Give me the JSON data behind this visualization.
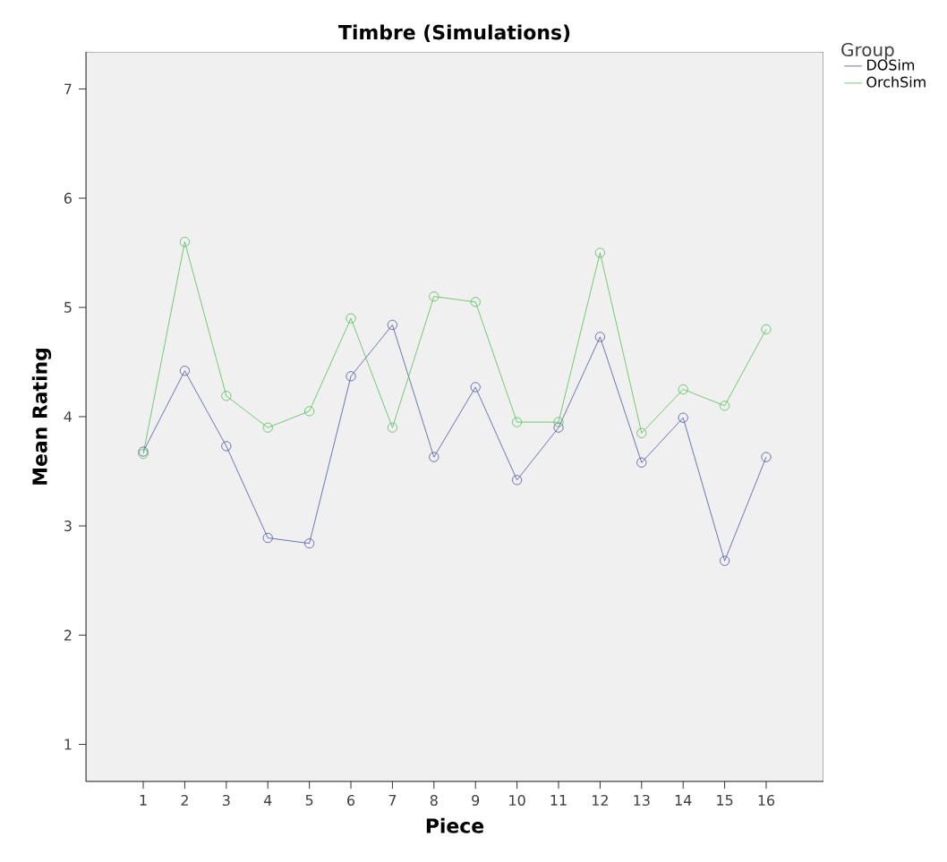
{
  "chart_data": {
    "type": "line",
    "title": "Timbre (Simulations)",
    "xlabel": "Piece",
    "ylabel": "Mean Rating",
    "legend_title": "Group",
    "x": [
      1,
      2,
      3,
      4,
      5,
      6,
      7,
      8,
      9,
      10,
      11,
      12,
      13,
      14,
      15,
      16
    ],
    "series": [
      {
        "name": "DOSim",
        "color": "#4a55a8",
        "values": [
          3.68,
          4.42,
          3.73,
          2.89,
          2.84,
          4.37,
          4.84,
          3.63,
          4.27,
          3.42,
          3.9,
          4.73,
          3.58,
          3.99,
          2.68,
          3.63
        ]
      },
      {
        "name": "OrchSim",
        "color": "#4fc24f",
        "values": [
          3.66,
          5.6,
          4.19,
          3.9,
          4.05,
          4.9,
          3.9,
          5.1,
          5.05,
          3.95,
          3.95,
          5.5,
          3.85,
          4.25,
          4.1,
          4.8
        ]
      }
    ],
    "xlim": [
      -0.38,
      17.38
    ],
    "ylim": [
      0.66,
      7.34
    ],
    "xticks": [
      1,
      2,
      3,
      4,
      5,
      6,
      7,
      8,
      9,
      10,
      11,
      12,
      13,
      14,
      15,
      16
    ],
    "yticks": [
      1,
      2,
      3,
      4,
      5,
      6,
      7
    ],
    "marker": "circle",
    "line_style": "solid",
    "grid": false,
    "legend": "top right"
  }
}
